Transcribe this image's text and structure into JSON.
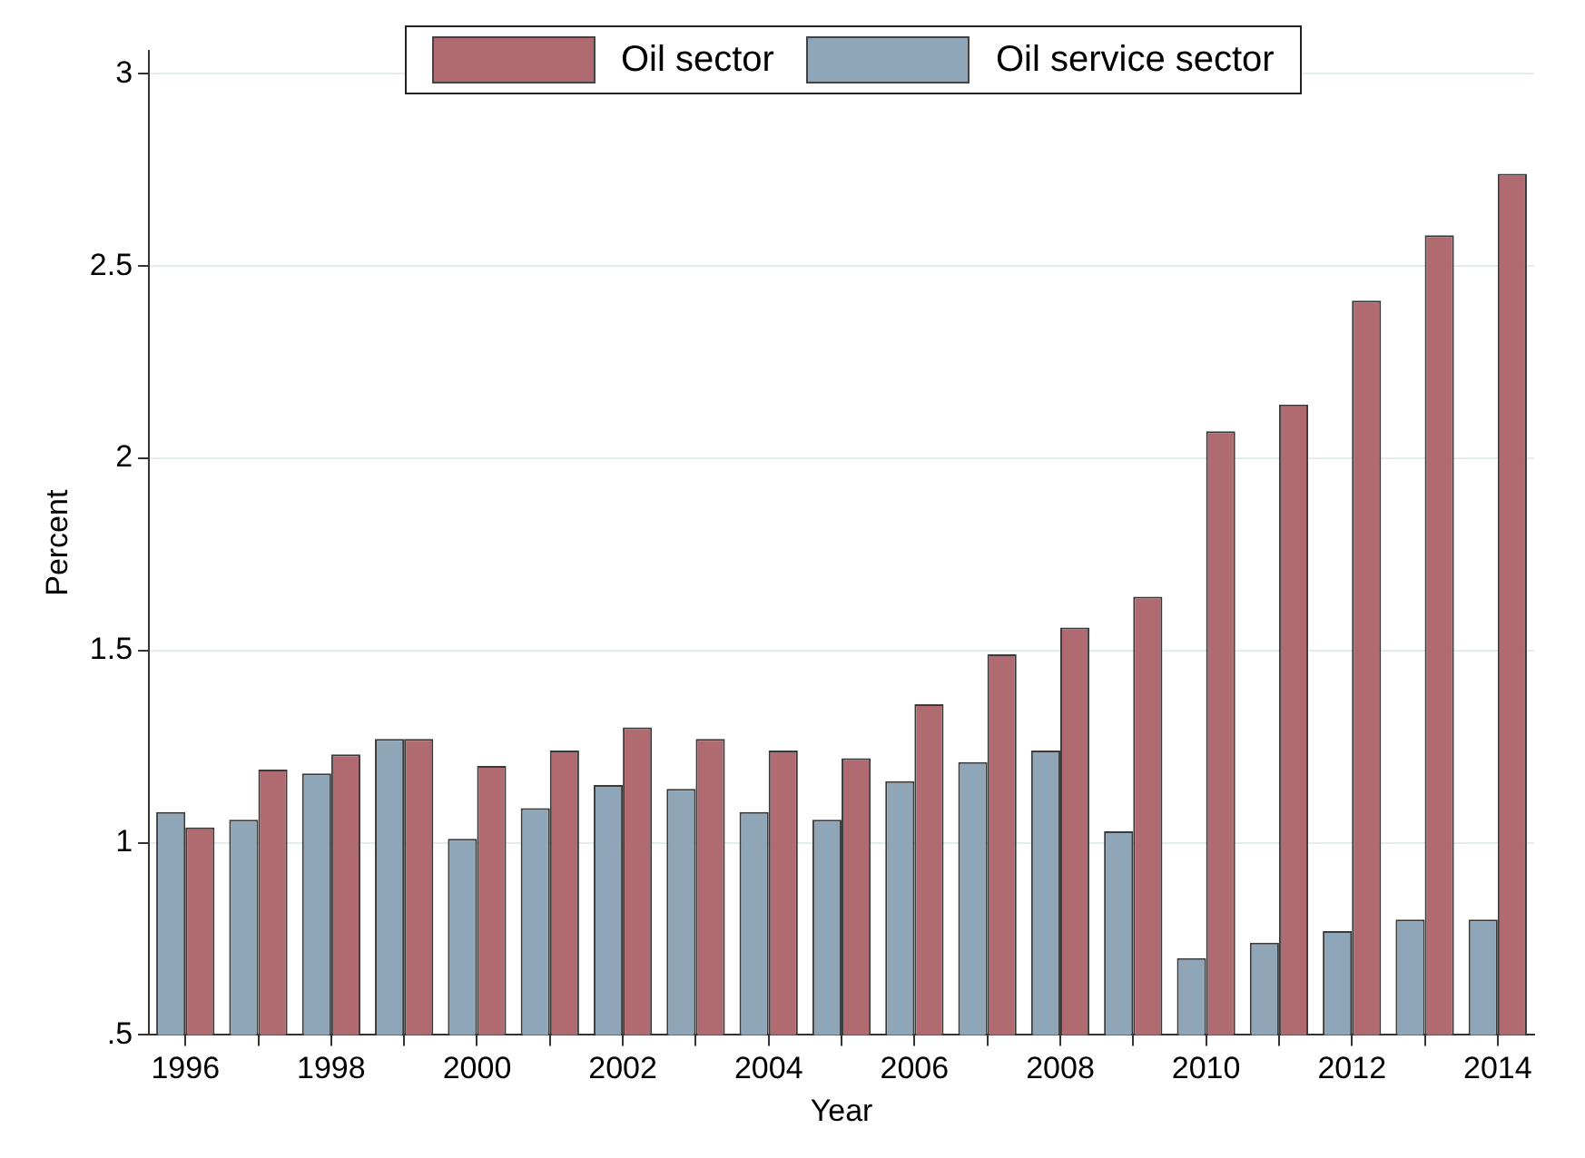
{
  "chart_data": {
    "type": "bar",
    "xlabel": "Year",
    "ylabel": "Percent",
    "categories": [
      "1996",
      null,
      "1998",
      null,
      "2000",
      null,
      "2002",
      null,
      "2004",
      null,
      "2006",
      null,
      "2008",
      null,
      "2010",
      null,
      "2012",
      null,
      "2014"
    ],
    "series": [
      {
        "name": "Oil service sector",
        "color": "#8fa5b8",
        "values": [
          1.08,
          1.06,
          1.18,
          1.27,
          1.01,
          1.09,
          1.15,
          1.14,
          1.08,
          1.06,
          1.16,
          1.21,
          1.24,
          1.03,
          0.7,
          0.74,
          0.77,
          0.8,
          0.8
        ]
      },
      {
        "name": "Oil sector",
        "color": "#b06b70",
        "values": [
          1.04,
          1.19,
          1.23,
          1.27,
          1.2,
          1.24,
          1.3,
          1.27,
          1.24,
          1.22,
          1.36,
          1.49,
          1.56,
          1.64,
          2.07,
          2.14,
          2.41,
          2.58,
          2.74
        ]
      }
    ],
    "ylim": [
      0.5,
      3.06
    ],
    "yticks": [
      {
        "value": 0.5,
        "label": ".5"
      },
      1,
      1.5,
      2,
      2.5,
      3
    ],
    "grid": "y",
    "legend": "top"
  }
}
